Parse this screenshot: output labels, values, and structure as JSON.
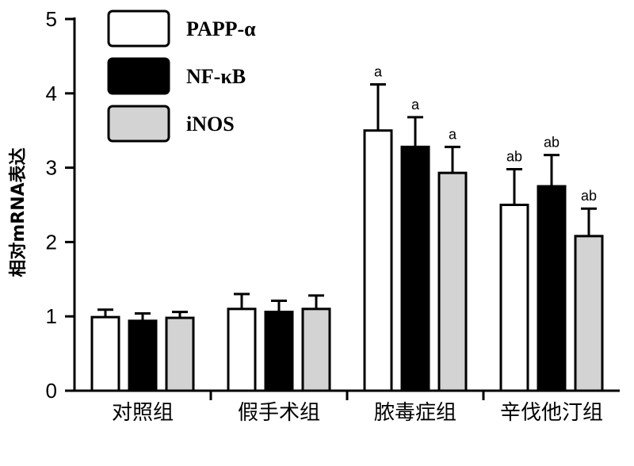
{
  "chart_data": {
    "type": "bar",
    "ylabel": "相对mRNA表达",
    "ylim": [
      0,
      5
    ],
    "yticks": [
      0,
      1,
      2,
      3,
      4,
      5
    ],
    "categories": [
      "对照组",
      "假手术组",
      "脓毒症组",
      "辛伐他汀组"
    ],
    "series": [
      {
        "name": "PAPP-α",
        "color": "#ffffff",
        "values": [
          0.99,
          1.1,
          3.5,
          2.5
        ],
        "errors": [
          0.1,
          0.2,
          0.62,
          0.48
        ],
        "annotations": [
          "",
          "",
          "a",
          "ab"
        ]
      },
      {
        "name": "NF-κB",
        "color": "#000000",
        "values": [
          0.94,
          1.06,
          3.28,
          2.75
        ],
        "errors": [
          0.1,
          0.15,
          0.4,
          0.42
        ],
        "annotations": [
          "",
          "",
          "a",
          "ab"
        ]
      },
      {
        "name": "iNOS",
        "color": "#d3d3d3",
        "values": [
          0.98,
          1.1,
          2.93,
          2.08
        ],
        "errors": [
          0.08,
          0.18,
          0.35,
          0.37
        ],
        "annotations": [
          "",
          "",
          "a",
          "ab"
        ]
      }
    ],
    "legend_position": "top-left"
  }
}
